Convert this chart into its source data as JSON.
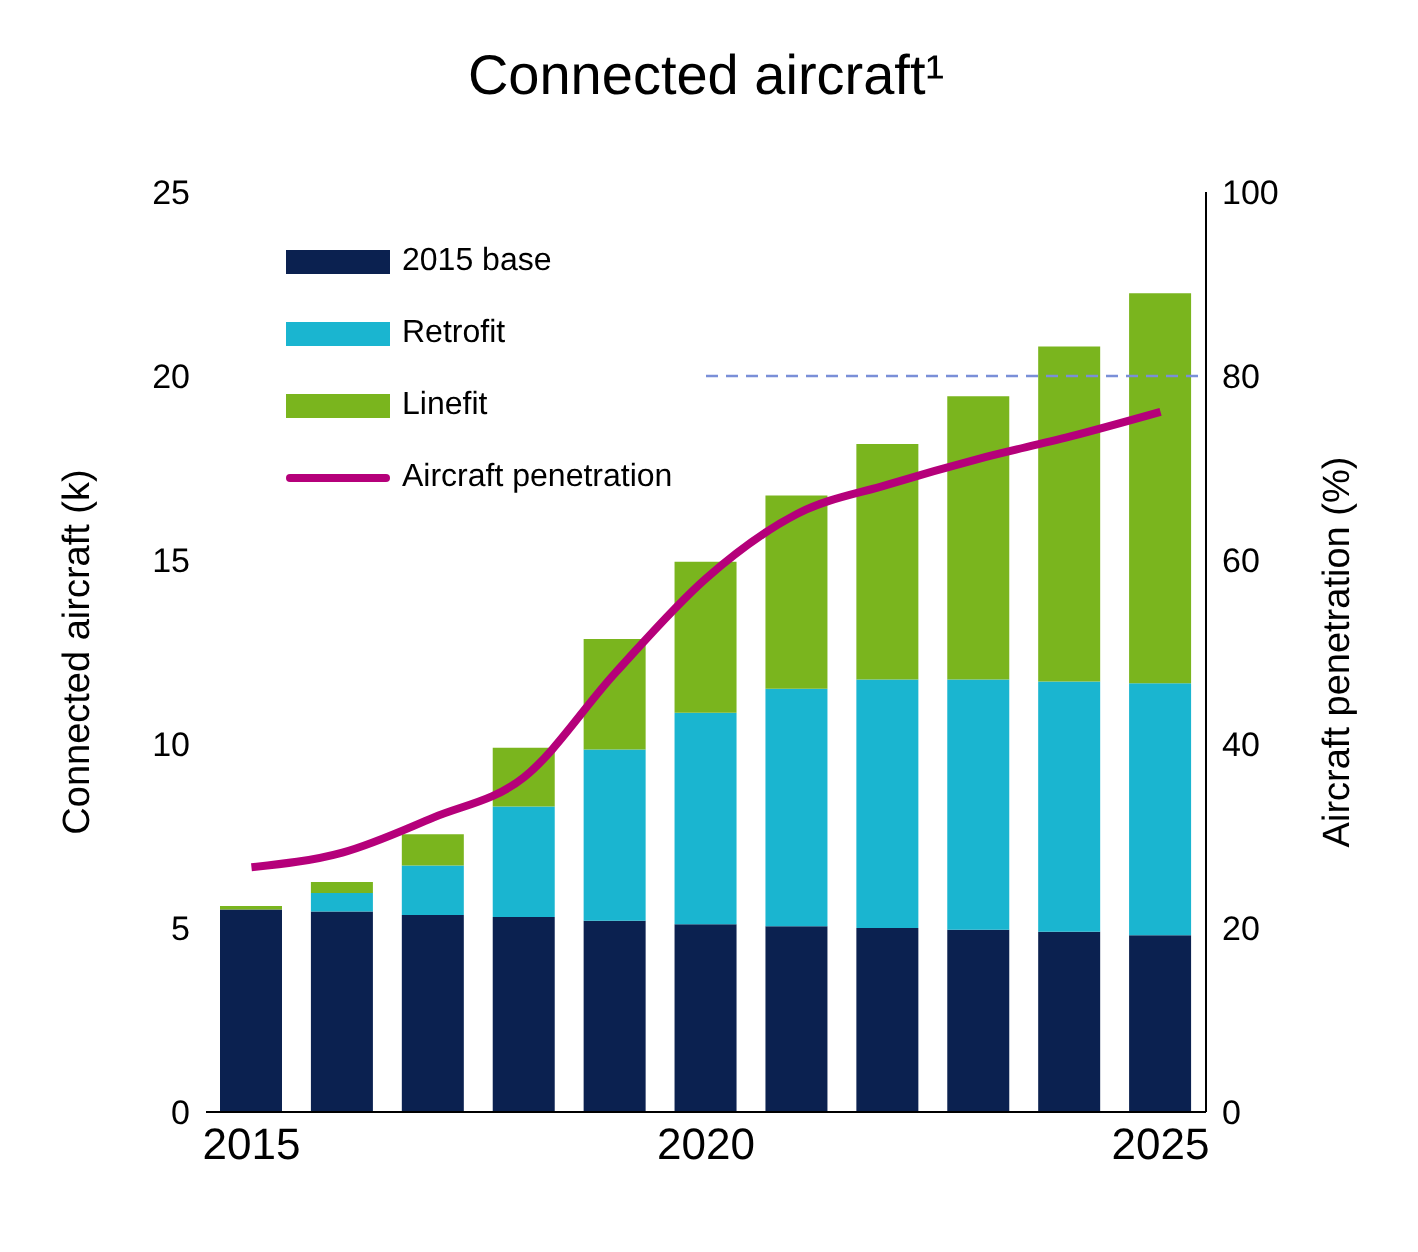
{
  "chart_data": {
    "type": "bar",
    "title": "Connected aircraft¹",
    "ylabel": "Connected aircraft (k)",
    "y2label": "Aircraft penetration (%)",
    "x": [
      2015,
      2016,
      2017,
      2018,
      2019,
      2020,
      2021,
      2022,
      2023,
      2024,
      2025
    ],
    "xlim": [
      2014.5,
      2025.5
    ],
    "xticks": [
      2015,
      2020,
      2025
    ],
    "ylim": [
      0,
      25
    ],
    "yticks": [
      0,
      5,
      10,
      15,
      20,
      25
    ],
    "y2lim": [
      0,
      100
    ],
    "y2ticks": [
      0,
      20,
      40,
      60,
      80,
      100
    ],
    "stacked": true,
    "legend": "top left",
    "grid": false,
    "series": [
      {
        "name": "2015 base",
        "color": "#0b2150",
        "values": [
          5.5,
          5.45,
          5.35,
          5.3,
          5.2,
          5.1,
          5.05,
          5.0,
          4.95,
          4.9,
          4.8
        ]
      },
      {
        "name": "Retrofit",
        "color": "#1ab5d0",
        "values": [
          0,
          0.5,
          1.35,
          3.0,
          4.65,
          5.75,
          6.45,
          6.75,
          6.8,
          6.8,
          6.85
        ]
      },
      {
        "name": "Linefit",
        "color": "#7ab51e",
        "values": [
          0.1,
          0.3,
          0.85,
          1.6,
          3.0,
          4.1,
          5.25,
          6.4,
          7.7,
          9.1,
          10.6
        ]
      },
      {
        "name": "Aircraft penetration",
        "type": "line",
        "axis": "y2",
        "color": "#b5007a",
        "values": [
          26.6,
          28.2,
          32,
          36.4,
          47.7,
          58,
          65,
          68.2,
          71,
          73.4,
          76.1
        ]
      }
    ],
    "ref_lines": [
      {
        "axis": "y2",
        "value": 80,
        "color": "#7a8fd8",
        "line_style": "dashed"
      }
    ]
  }
}
